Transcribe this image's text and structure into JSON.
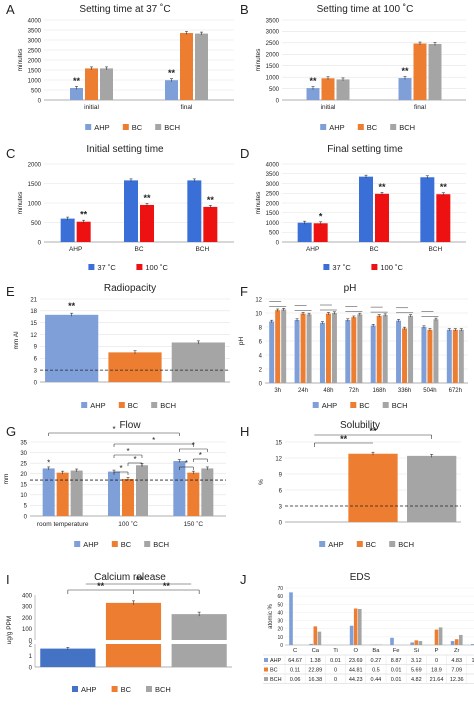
{
  "colors": {
    "AHP": "#7f9fd8",
    "BC": "#ed7d31",
    "BCH": "#a5a5a5",
    "t37": "#3a6fd8",
    "t100": "#ee1111",
    "AHPdark": "#4472c4"
  },
  "chart_data": [
    {
      "id": "A",
      "type": "bar",
      "panel": "A",
      "title": "Setting time at 37 ˚C",
      "ylabel": "minutes",
      "ylim": [
        0,
        4000
      ],
      "yticks": [
        0,
        500,
        1000,
        1500,
        2000,
        2500,
        3000,
        3500,
        4000
      ],
      "categories": [
        "initial",
        "final"
      ],
      "series": [
        {
          "name": "AHP",
          "values": [
            600,
            990
          ]
        },
        {
          "name": "BC",
          "values": [
            1580,
            3350
          ]
        },
        {
          "name": "BCH",
          "values": [
            1580,
            3320
          ]
        }
      ],
      "annotations": [
        "**",
        "**"
      ],
      "legend": [
        "AHP",
        "BC",
        "BCH"
      ]
    },
    {
      "id": "B",
      "type": "bar",
      "panel": "B",
      "title": "Setting time at 100 ˚C",
      "ylabel": "minutes",
      "ylim": [
        0,
        3500
      ],
      "yticks": [
        0,
        500,
        1000,
        1500,
        2000,
        2500,
        3000,
        3500
      ],
      "categories": [
        "initial",
        "final"
      ],
      "series": [
        {
          "name": "AHP",
          "values": [
            520,
            960
          ]
        },
        {
          "name": "BC",
          "values": [
            950,
            2470
          ]
        },
        {
          "name": "BCH",
          "values": [
            900,
            2450
          ]
        }
      ],
      "annotations": [
        "**",
        "**"
      ],
      "legend": [
        "AHP",
        "BC",
        "BCH"
      ]
    },
    {
      "id": "C",
      "type": "bar",
      "panel": "C",
      "title": "Initial setting time",
      "ylabel": "minutes",
      "ylim": [
        0,
        2000
      ],
      "yticks": [
        0,
        500,
        1000,
        1500,
        2000
      ],
      "categories": [
        "AHP",
        "BC",
        "BCH"
      ],
      "series": [
        {
          "name": "37 ˚C",
          "values": [
            600,
            1580,
            1580
          ]
        },
        {
          "name": "100 ˚C",
          "values": [
            520,
            950,
            900
          ]
        }
      ],
      "annotations": [
        "**",
        "**",
        "**"
      ],
      "legend": [
        "37 ˚C",
        "100 ˚C"
      ]
    },
    {
      "id": "D",
      "type": "bar",
      "panel": "D",
      "title": "Final setting time",
      "ylabel": "minutes",
      "ylim": [
        0,
        4000
      ],
      "yticks": [
        0,
        500,
        1000,
        1500,
        2000,
        2500,
        3000,
        3500,
        4000
      ],
      "categories": [
        "AHP",
        "BC",
        "BCH"
      ],
      "series": [
        {
          "name": "37 ˚C",
          "values": [
            990,
            3350,
            3320
          ]
        },
        {
          "name": "100 ˚C",
          "values": [
            960,
            2470,
            2450
          ]
        }
      ],
      "annotations": [
        "*",
        "**",
        "**"
      ],
      "legend": [
        "37 ˚C",
        "100 ˚C"
      ]
    },
    {
      "id": "E",
      "type": "bar",
      "panel": "E",
      "title": "Radiopacity",
      "ylabel": "mm Al",
      "ylim": [
        0,
        21
      ],
      "yticks": [
        0,
        3,
        6,
        9,
        12,
        15,
        18,
        21
      ],
      "categories": [
        "AHP",
        "BC",
        "BCH"
      ],
      "values": [
        17,
        7.5,
        10
      ],
      "reference_line": 3,
      "annotations": [
        "**"
      ],
      "legend": [
        "AHP",
        "BC",
        "BCH"
      ]
    },
    {
      "id": "F",
      "type": "bar",
      "panel": "F",
      "title": "pH",
      "ylabel": "pH",
      "ylim": [
        0,
        12
      ],
      "yticks": [
        0,
        2,
        4,
        6,
        8,
        10,
        12
      ],
      "categories": [
        "3h",
        "24h",
        "48h",
        "72h",
        "168h",
        "336h",
        "504h",
        "672h"
      ],
      "series": [
        {
          "name": "AHP",
          "values": [
            8.8,
            9.0,
            8.6,
            9.0,
            8.2,
            8.9,
            8.0,
            7.6
          ]
        },
        {
          "name": "BC",
          "values": [
            10.4,
            9.9,
            9.9,
            9.4,
            9.6,
            7.8,
            7.6,
            7.6
          ]
        },
        {
          "name": "BCH",
          "values": [
            10.5,
            9.8,
            10.0,
            9.8,
            9.7,
            9.6,
            9.1,
            7.6
          ]
        }
      ],
      "legend": [
        "AHP",
        "BC",
        "BCH"
      ]
    },
    {
      "id": "G",
      "type": "bar",
      "panel": "G",
      "title": "Flow",
      "ylabel": "mm",
      "ylim": [
        0,
        35
      ],
      "yticks": [
        0,
        5,
        10,
        15,
        20,
        25,
        30,
        35
      ],
      "categories": [
        "room temperature",
        "100 ˚C",
        "150 ˚C"
      ],
      "series": [
        {
          "name": "AHP",
          "values": [
            22.5,
            21,
            26
          ]
        },
        {
          "name": "BC",
          "values": [
            20.5,
            17.5,
            20.5
          ]
        },
        {
          "name": "BCH",
          "values": [
            21.5,
            24,
            22.5
          ]
        }
      ],
      "reference_line": 17,
      "annotations": [
        "*",
        "*",
        "*",
        "*",
        "*",
        "*",
        "*",
        "*",
        "*"
      ],
      "legend": [
        "AHP",
        "BC",
        "BCH"
      ]
    },
    {
      "id": "H",
      "type": "bar",
      "panel": "H",
      "title": "Solubility",
      "ylabel": "%",
      "ylim": [
        0,
        15
      ],
      "yticks": [
        0,
        3,
        6,
        9,
        12,
        15
      ],
      "categories": [
        "AHP",
        "BC",
        "BCH"
      ],
      "values": [
        0,
        12.8,
        12.4
      ],
      "reference_line": 3,
      "annotations": [
        "**",
        "**"
      ],
      "legend": [
        "AHP",
        "BC",
        "BCH"
      ]
    },
    {
      "id": "I",
      "type": "bar",
      "panel": "I",
      "title": "Calcium release",
      "ylabel": "ug/g PPM",
      "yticks_top": [
        0,
        100,
        200,
        300,
        400
      ],
      "yticks_bottom": [
        0,
        1,
        2
      ],
      "categories": [
        "AHP",
        "BC",
        "BCH"
      ],
      "values": [
        1.6,
        330,
        230
      ],
      "annotations": [
        "**",
        "**",
        "**"
      ],
      "legend": [
        "AHP",
        "BC",
        "BCH"
      ]
    },
    {
      "id": "J",
      "type": "bar",
      "panel": "J",
      "title": "EDS",
      "ylabel": "atomic %",
      "ylim": [
        0,
        70
      ],
      "yticks": [
        0,
        10,
        20,
        30,
        40,
        50,
        60,
        70
      ],
      "categories": [
        "C",
        "Ca",
        "Ti",
        "O",
        "Ba",
        "Fe",
        "Si",
        "P",
        "Zr",
        "W"
      ],
      "series": [
        {
          "name": "AHP",
          "values": [
            64.67,
            1.38,
            0.01,
            23.69,
            0.27,
            8.87,
            3.12,
            0,
            4.83,
            1.15
          ]
        },
        {
          "name": "BC",
          "values": [
            0.11,
            22.89,
            0,
            44.81,
            0.5,
            0.01,
            5.69,
            18.9,
            7.09,
            0
          ]
        },
        {
          "name": "BCH",
          "values": [
            0.06,
            16.38,
            0,
            44.23,
            0.44,
            0.01,
            4.82,
            21.64,
            12.36,
            0
          ]
        }
      ],
      "table": [
        [
          "AHP",
          "64.67",
          "1.38",
          "0.01",
          "23.69",
          "0.27",
          "8.87",
          "3.12",
          "0",
          "4.83",
          "1.15"
        ],
        [
          "BC",
          "0.11",
          "22.89",
          "0",
          "44.81",
          "0.5",
          "0.01",
          "5.69",
          "18.9",
          "7.09",
          "0"
        ],
        [
          "BCH",
          "0.06",
          "16.38",
          "0",
          "44.23",
          "0.44",
          "0.01",
          "4.82",
          "21.64",
          "12.36",
          "0"
        ]
      ]
    }
  ]
}
